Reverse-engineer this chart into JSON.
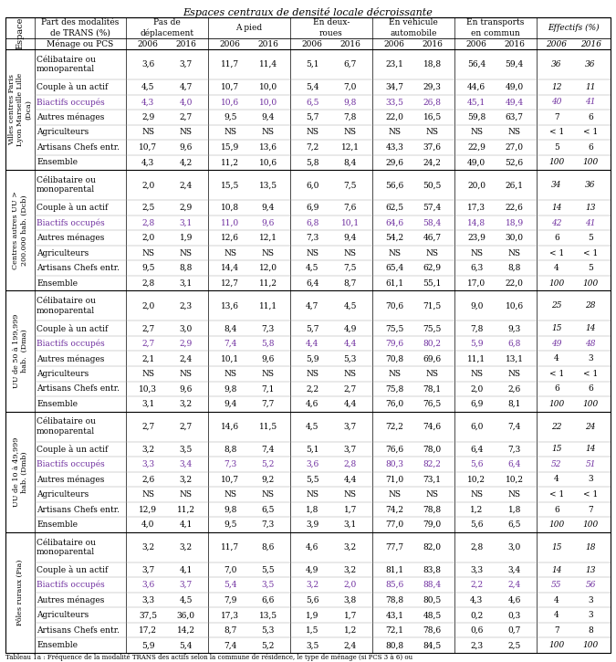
{
  "title": "Espaces centraux de densité locale décroissante",
  "caption": "Tableau 1a : Fréquence de la modalité TRANS des actifs selon la commune de résidence, le type de ménage (si PCS 3 à 6) ou",
  "col_headers_row1": [
    "Part des modalités\nde TRANS (%)",
    "Pas de\ndéplacement",
    "A pied",
    "En deux-\nroues",
    "En véhicule\nautomobile",
    "En transports\nen commun",
    "Effectifs (%)"
  ],
  "col_headers_row2": [
    "Ménage ou PCS",
    "2006",
    "2016",
    "2006",
    "2016",
    "2006",
    "2016",
    "2006",
    "2016",
    "2006",
    "2016",
    "2006",
    "2016"
  ],
  "purple": "#7030A0",
  "sections": [
    {
      "label": "Villes centres Paris\nLyon Marseille Lille\n(Dca)",
      "rows": [
        {
          "name": "Célibataire ou\nmonoparental",
          "purple": false,
          "vals": [
            "3,6",
            "3,7",
            "11,7",
            "11,4",
            "5,1",
            "6,7",
            "23,1",
            "18,8",
            "56,4",
            "59,4",
            "36",
            "36"
          ],
          "eff_italic": true
        },
        {
          "name": "Couple à un actif",
          "purple": false,
          "vals": [
            "4,5",
            "4,7",
            "10,7",
            "10,0",
            "5,4",
            "7,0",
            "34,7",
            "29,3",
            "44,6",
            "49,0",
            "12",
            "11"
          ],
          "eff_italic": true
        },
        {
          "name": "Biactifs occupés",
          "purple": true,
          "vals": [
            "4,3",
            "4,0",
            "10,6",
            "10,0",
            "6,5",
            "9,8",
            "33,5",
            "26,8",
            "45,1",
            "49,4",
            "40",
            "41"
          ],
          "eff_italic": true
        },
        {
          "name": "Autres ménages",
          "purple": false,
          "vals": [
            "2,9",
            "2,7",
            "9,5",
            "9,4",
            "5,7",
            "7,8",
            "22,0",
            "16,5",
            "59,8",
            "63,7",
            "7",
            "6"
          ],
          "eff_italic": false
        },
        {
          "name": "Agriculteurs",
          "purple": false,
          "vals": [
            "NS",
            "NS",
            "NS",
            "NS",
            "NS",
            "NS",
            "NS",
            "NS",
            "NS",
            "NS",
            "< 1",
            "< 1"
          ],
          "eff_italic": false
        },
        {
          "name": "Artisans Chefs entr.",
          "purple": false,
          "vals": [
            "10,7",
            "9,6",
            "15,9",
            "13,6",
            "7,2",
            "12,1",
            "43,3",
            "37,6",
            "22,9",
            "27,0",
            "5",
            "6"
          ],
          "eff_italic": false
        },
        {
          "name": "Ensemble",
          "purple": false,
          "vals": [
            "4,3",
            "4,2",
            "11,2",
            "10,6",
            "5,8",
            "8,4",
            "29,6",
            "24,2",
            "49,0",
            "52,6",
            "100",
            "100"
          ],
          "eff_italic": true
        }
      ]
    },
    {
      "label": "Centres autres UU >\n200.000 hab. (Dcb)",
      "rows": [
        {
          "name": "Célibataire ou\nmonoparental",
          "purple": false,
          "vals": [
            "2,0",
            "2,4",
            "15,5",
            "13,5",
            "6,0",
            "7,5",
            "56,6",
            "50,5",
            "20,0",
            "26,1",
            "34",
            "36"
          ],
          "eff_italic": true
        },
        {
          "name": "Couple à un actif",
          "purple": false,
          "vals": [
            "2,5",
            "2,9",
            "10,8",
            "9,4",
            "6,9",
            "7,6",
            "62,5",
            "57,4",
            "17,3",
            "22,6",
            "14",
            "13"
          ],
          "eff_italic": true
        },
        {
          "name": "Biactifs occupés",
          "purple": true,
          "vals": [
            "2,8",
            "3,1",
            "11,0",
            "9,6",
            "6,8",
            "10,1",
            "64,6",
            "58,4",
            "14,8",
            "18,9",
            "42",
            "41"
          ],
          "eff_italic": true
        },
        {
          "name": "Autres ménages",
          "purple": false,
          "vals": [
            "2,0",
            "1,9",
            "12,6",
            "12,1",
            "7,3",
            "9,4",
            "54,2",
            "46,7",
            "23,9",
            "30,0",
            "6",
            "5"
          ],
          "eff_italic": false
        },
        {
          "name": "Agriculteurs",
          "purple": false,
          "vals": [
            "NS",
            "NS",
            "NS",
            "NS",
            "NS",
            "NS",
            "NS",
            "NS",
            "NS",
            "NS",
            "< 1",
            "< 1"
          ],
          "eff_italic": false
        },
        {
          "name": "Artisans Chefs entr.",
          "purple": false,
          "vals": [
            "9,5",
            "8,8",
            "14,4",
            "12,0",
            "4,5",
            "7,5",
            "65,4",
            "62,9",
            "6,3",
            "8,8",
            "4",
            "5"
          ],
          "eff_italic": false
        },
        {
          "name": "Ensemble",
          "purple": false,
          "vals": [
            "2,8",
            "3,1",
            "12,7",
            "11,2",
            "6,4",
            "8,7",
            "61,1",
            "55,1",
            "17,0",
            "22,0",
            "100",
            "100"
          ],
          "eff_italic": true
        }
      ]
    },
    {
      "label": "UU de 50 à 199,999\nhab.  (Dma)",
      "rows": [
        {
          "name": "Célibataire ou\nmonoparental",
          "purple": false,
          "vals": [
            "2,0",
            "2,3",
            "13,6",
            "11,1",
            "4,7",
            "4,5",
            "70,6",
            "71,5",
            "9,0",
            "10,6",
            "25",
            "28"
          ],
          "eff_italic": true
        },
        {
          "name": "Couple à un actif",
          "purple": false,
          "vals": [
            "2,7",
            "3,0",
            "8,4",
            "7,3",
            "5,7",
            "4,9",
            "75,5",
            "75,5",
            "7,8",
            "9,3",
            "15",
            "14"
          ],
          "eff_italic": true
        },
        {
          "name": "Biactifs occupés",
          "purple": true,
          "vals": [
            "2,7",
            "2,9",
            "7,4",
            "5,8",
            "4,4",
            "4,4",
            "79,6",
            "80,2",
            "5,9",
            "6,8",
            "49",
            "48"
          ],
          "eff_italic": true
        },
        {
          "name": "Autres ménages",
          "purple": false,
          "vals": [
            "2,1",
            "2,4",
            "10,1",
            "9,6",
            "5,9",
            "5,3",
            "70,8",
            "69,6",
            "11,1",
            "13,1",
            "4",
            "3"
          ],
          "eff_italic": false
        },
        {
          "name": "Agriculteurs",
          "purple": false,
          "vals": [
            "NS",
            "NS",
            "NS",
            "NS",
            "NS",
            "NS",
            "NS",
            "NS",
            "NS",
            "NS",
            "< 1",
            "< 1"
          ],
          "eff_italic": false
        },
        {
          "name": "Artisans Chefs entr.",
          "purple": false,
          "vals": [
            "10,3",
            "9,6",
            "9,8",
            "7,1",
            "2,2",
            "2,7",
            "75,8",
            "78,1",
            "2,0",
            "2,6",
            "6",
            "6"
          ],
          "eff_italic": false
        },
        {
          "name": "Ensemble",
          "purple": false,
          "vals": [
            "3,1",
            "3,2",
            "9,4",
            "7,7",
            "4,6",
            "4,4",
            "76,0",
            "76,5",
            "6,9",
            "8,1",
            "100",
            "100"
          ],
          "eff_italic": true
        }
      ]
    },
    {
      "label": "UU de 10 à 49,999\nhab. (Dmb)",
      "rows": [
        {
          "name": "Célibataire ou\nmonoparental",
          "purple": false,
          "vals": [
            "2,7",
            "2,7",
            "14,6",
            "11,5",
            "4,5",
            "3,7",
            "72,2",
            "74,6",
            "6,0",
            "7,4",
            "22",
            "24"
          ],
          "eff_italic": true
        },
        {
          "name": "Couple à un actif",
          "purple": false,
          "vals": [
            "3,2",
            "3,5",
            "8,8",
            "7,4",
            "5,1",
            "3,7",
            "76,6",
            "78,0",
            "6,4",
            "7,3",
            "15",
            "14"
          ],
          "eff_italic": true
        },
        {
          "name": "Biactifs occupés",
          "purple": true,
          "vals": [
            "3,3",
            "3,4",
            "7,3",
            "5,2",
            "3,6",
            "2,8",
            "80,3",
            "82,2",
            "5,6",
            "6,4",
            "52",
            "51"
          ],
          "eff_italic": true
        },
        {
          "name": "Autres ménages",
          "purple": false,
          "vals": [
            "2,6",
            "3,2",
            "10,7",
            "9,2",
            "5,5",
            "4,4",
            "71,0",
            "73,1",
            "10,2",
            "10,2",
            "4",
            "3"
          ],
          "eff_italic": false
        },
        {
          "name": "Agriculteurs",
          "purple": false,
          "vals": [
            "NS",
            "NS",
            "NS",
            "NS",
            "NS",
            "NS",
            "NS",
            "NS",
            "NS",
            "NS",
            "< 1",
            "< 1"
          ],
          "eff_italic": false
        },
        {
          "name": "Artisans Chefs entr.",
          "purple": false,
          "vals": [
            "12,9",
            "11,2",
            "9,8",
            "6,5",
            "1,8",
            "1,7",
            "74,2",
            "78,8",
            "1,2",
            "1,8",
            "6",
            "7"
          ],
          "eff_italic": false
        },
        {
          "name": "Ensemble",
          "purple": false,
          "vals": [
            "4,0",
            "4,1",
            "9,5",
            "7,3",
            "3,9",
            "3,1",
            "77,0",
            "79,0",
            "5,6",
            "6,5",
            "100",
            "100"
          ],
          "eff_italic": true
        }
      ]
    },
    {
      "label": "Pôles ruraux (Pia)",
      "rows": [
        {
          "name": "Célibataire ou\nmonoparental",
          "purple": false,
          "vals": [
            "3,2",
            "3,2",
            "11,7",
            "8,6",
            "4,6",
            "3,2",
            "77,7",
            "82,0",
            "2,8",
            "3,0",
            "15",
            "18"
          ],
          "eff_italic": true
        },
        {
          "name": "Couple à un actif",
          "purple": false,
          "vals": [
            "3,7",
            "4,1",
            "7,0",
            "5,5",
            "4,9",
            "3,2",
            "81,1",
            "83,8",
            "3,3",
            "3,4",
            "14",
            "13"
          ],
          "eff_italic": true
        },
        {
          "name": "Biactifs occupés",
          "purple": true,
          "vals": [
            "3,6",
            "3,7",
            "5,4",
            "3,5",
            "3,2",
            "2,0",
            "85,6",
            "88,4",
            "2,2",
            "2,4",
            "55",
            "56"
          ],
          "eff_italic": true
        },
        {
          "name": "Autres ménages",
          "purple": false,
          "vals": [
            "3,3",
            "4,5",
            "7,9",
            "6,6",
            "5,6",
            "3,8",
            "78,8",
            "80,5",
            "4,3",
            "4,6",
            "4",
            "3"
          ],
          "eff_italic": false
        },
        {
          "name": "Agriculteurs",
          "purple": false,
          "vals": [
            "37,5",
            "36,0",
            "17,3",
            "13,5",
            "1,9",
            "1,7",
            "43,1",
            "48,5",
            "0,2",
            "0,3",
            "4",
            "3"
          ],
          "eff_italic": false
        },
        {
          "name": "Artisans Chefs entr.",
          "purple": false,
          "vals": [
            "17,2",
            "14,2",
            "8,7",
            "5,3",
            "1,5",
            "1,2",
            "72,1",
            "78,6",
            "0,6",
            "0,7",
            "7",
            "8"
          ],
          "eff_italic": false
        },
        {
          "name": "Ensemble",
          "purple": false,
          "vals": [
            "5,9",
            "5,4",
            "7,4",
            "5,2",
            "3,5",
            "2,4",
            "80,8",
            "84,5",
            "2,3",
            "2,5",
            "100",
            "100"
          ],
          "eff_italic": true
        }
      ]
    }
  ]
}
